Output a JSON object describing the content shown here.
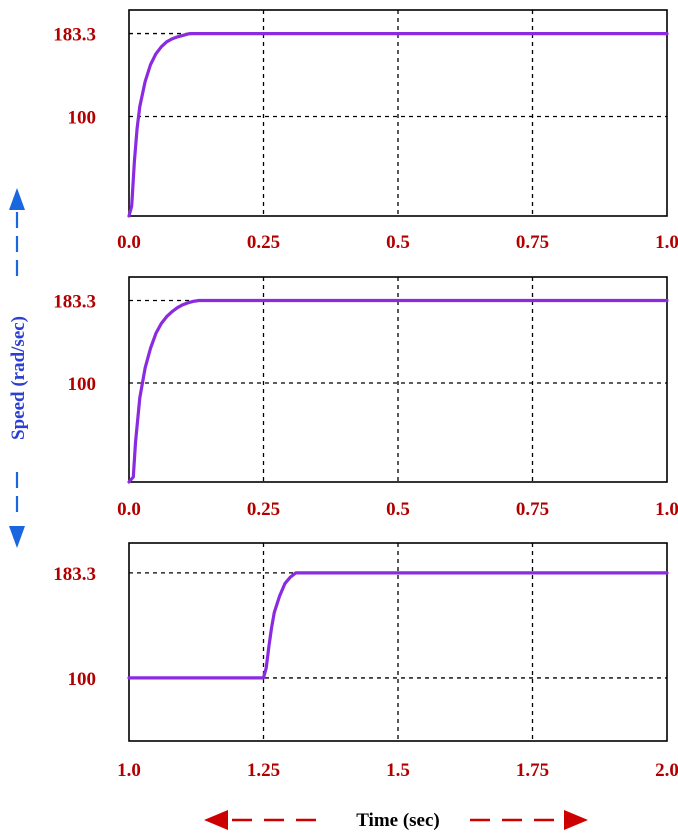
{
  "colors": {
    "curve": "#8a2be2",
    "tick_label": "#b20000",
    "speed_label": "#2b3fd6",
    "speed_arrow": "#1a66e0",
    "time_arrow": "#cc0000",
    "grid": "#000000"
  },
  "speed_axis_label": "Speed (rad/sec)",
  "time_axis_label": "Time (sec)",
  "chart_data": [
    {
      "type": "line",
      "xlim": [
        0.0,
        1.0
      ],
      "ylim": [
        0,
        207
      ],
      "xticks": [
        0.0,
        0.25,
        0.5,
        0.75,
        1.0
      ],
      "xtick_labels": [
        "0.0",
        "0.25",
        "0.5",
        "0.75",
        "1.0"
      ],
      "yticks": [
        100,
        183.3
      ],
      "ytick_labels": [
        "100",
        "183.3"
      ],
      "grid": true,
      "series": [
        {
          "x": [
            0.0,
            0.005,
            0.01,
            0.015,
            0.02,
            0.03,
            0.04,
            0.05,
            0.06,
            0.07,
            0.08,
            0.09,
            0.1,
            0.11,
            0.115,
            0.2,
            0.4,
            0.6,
            0.8,
            1.0
          ],
          "y": [
            0,
            10,
            55,
            88,
            110,
            135,
            152,
            163,
            170,
            175,
            178,
            180,
            181.5,
            183,
            183.3,
            183.3,
            183.3,
            183.3,
            183.3,
            183.3
          ]
        }
      ]
    },
    {
      "type": "line",
      "xlim": [
        0.0,
        1.0
      ],
      "ylim": [
        0,
        207
      ],
      "xticks": [
        0.0,
        0.25,
        0.5,
        0.75,
        1.0
      ],
      "xtick_labels": [
        "0.0",
        "0.25",
        "0.5",
        "0.75",
        "1.0"
      ],
      "yticks": [
        100,
        183.3
      ],
      "ytick_labels": [
        "100",
        "183.3"
      ],
      "grid": true,
      "series": [
        {
          "x": [
            0.0,
            0.008,
            0.012,
            0.02,
            0.03,
            0.04,
            0.05,
            0.06,
            0.07,
            0.08,
            0.09,
            0.1,
            0.11,
            0.12,
            0.13,
            0.2,
            0.4,
            0.6,
            0.8,
            1.0
          ],
          "y": [
            0,
            5,
            40,
            85,
            115,
            135,
            150,
            160,
            167,
            172,
            176,
            179,
            181,
            182.5,
            183.3,
            183.3,
            183.3,
            183.3,
            183.3,
            183.3
          ]
        }
      ]
    },
    {
      "type": "line",
      "xlim": [
        1.0,
        2.0
      ],
      "ylim": [
        50,
        207
      ],
      "xticks": [
        1.0,
        1.25,
        1.5,
        1.75,
        2.0
      ],
      "xtick_labels": [
        "1.0",
        "1.25",
        "1.5",
        "1.75",
        "2.0"
      ],
      "yticks": [
        100,
        183.3
      ],
      "ytick_labels": [
        "100",
        "183.3"
      ],
      "grid": true,
      "series": [
        {
          "x": [
            1.0,
            1.1,
            1.2,
            1.25,
            1.255,
            1.26,
            1.265,
            1.27,
            1.28,
            1.29,
            1.3,
            1.31,
            1.4,
            1.6,
            1.8,
            2.0
          ],
          "y": [
            100,
            100,
            100,
            100,
            108,
            125,
            140,
            152,
            165,
            175,
            180,
            183.3,
            183.3,
            183.3,
            183.3,
            183.3
          ]
        }
      ]
    }
  ]
}
